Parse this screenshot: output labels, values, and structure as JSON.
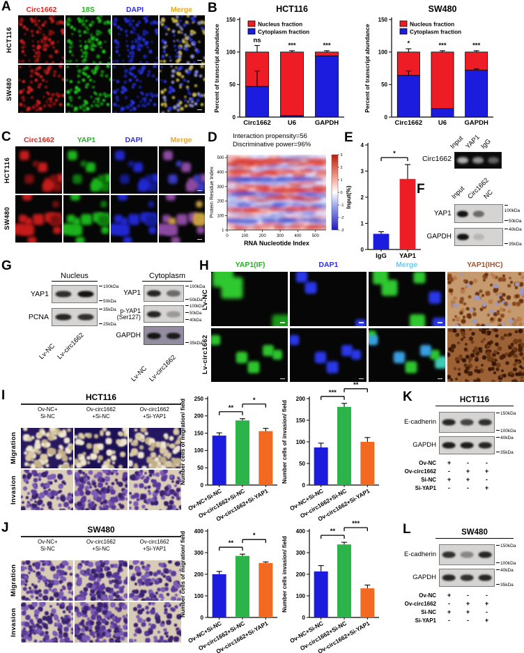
{
  "panelA": {
    "letter": "A",
    "columns": [
      {
        "label": "Circ1662",
        "color": "#e8221c"
      },
      {
        "label": "18S",
        "color": "#22b322"
      },
      {
        "label": "DAPI",
        "color": "#2d2df0"
      },
      {
        "label": "Merge",
        "color": "#e8a820"
      }
    ],
    "rows": [
      "HCT116",
      "SW480"
    ]
  },
  "panelB": {
    "letter": "B"
  },
  "panelC": {
    "letter": "C",
    "columns": [
      {
        "label": "Circ1662",
        "color": "#e8221c"
      },
      {
        "label": "YAP1",
        "color": "#22b322"
      },
      {
        "label": "DAPI",
        "color": "#2d2df0"
      },
      {
        "label": "Merge",
        "color": "#e8a820"
      }
    ],
    "rows": [
      "HCT116",
      "SW480"
    ]
  },
  "panelD": {
    "letter": "D",
    "annotation_line1": "Interaction propensity=56",
    "annotation_line2": "Discriminative power=96%"
  },
  "panelE": {
    "letter": "E",
    "gel": {
      "label": "Circ1662",
      "lanes": [
        "Input",
        "YAP1",
        "IgG"
      ],
      "bands": [
        0.85,
        0.7,
        0.45
      ]
    }
  },
  "panelF": {
    "letter": "F",
    "lanes": [
      "Input",
      "Circ1662",
      "NC"
    ],
    "blots": [
      {
        "label": "YAP1",
        "markers": [
          "100kDa",
          "50kDa"
        ],
        "bands": [
          1,
          0.55,
          0
        ]
      },
      {
        "label": "GAPDH",
        "markers": [
          "40kDa",
          "35kDa"
        ],
        "bands": [
          1,
          0.15,
          0
        ]
      }
    ]
  },
  "panelG": {
    "letter": "G",
    "nucleus": {
      "title": "Nucleus",
      "lanes": [
        "Lv-NC",
        "Lv-circ1662"
      ],
      "blots": [
        {
          "label": "YAP1",
          "markers": [
            "100kDa",
            "50kDa"
          ],
          "bands": [
            0.85,
            1
          ]
        },
        {
          "label": "PCNA",
          "markers": [
            "35kDa",
            "25kDa"
          ],
          "bands": [
            0.9,
            0.85
          ]
        }
      ]
    },
    "cytoplasm": {
      "title": "Cytoplasm",
      "lanes": [
        "Lv-NC",
        "Lv-circ1662"
      ],
      "blots": [
        {
          "label": "YAP1",
          "markers": [
            "100kDa",
            "50kDa"
          ],
          "bands": [
            0.9,
            0.55
          ]
        },
        {
          "label": "p-YAP1\n(Ser127)",
          "markers": [
            "100kDa",
            "50kDa",
            "40kDa"
          ],
          "bands": [
            0.9,
            0.3
          ]
        },
        {
          "label": "GAPDH",
          "markers": [
            "35kDa"
          ],
          "bands": [
            1,
            0.95
          ],
          "dark": true
        }
      ]
    }
  },
  "panelH": {
    "letter": "H",
    "columns": [
      {
        "label": "YAP1(IF)",
        "color": "#22b322"
      },
      {
        "label": "DAP1",
        "color": "#2d2df0"
      },
      {
        "label": "Merge",
        "color": "#66ccee"
      },
      {
        "label": "YAP1(IHC)",
        "color": "#a0522d"
      }
    ],
    "rows": [
      "Lv-NC",
      "Lv-circ1662"
    ]
  },
  "panelI": {
    "letter": "I",
    "title": "HCT116",
    "col_labels": [
      "Ov-NC+\nSi-NC",
      "Ov-circ1662\n+Si-NC",
      "Ov-circ1662\n+Si-YAP1"
    ],
    "row_labels": [
      "Migration",
      "Invasion"
    ]
  },
  "panelJ": {
    "letter": "J",
    "title": "SW480",
    "col_labels": [
      "Ov-NC+\nSi-NC",
      "Ov-circ1662\n+Si-NC",
      "Ov-circ1662\n+Si-YAP1"
    ],
    "row_labels": [
      "Migration",
      "Invasion"
    ]
  },
  "panelK": {
    "letter": "K",
    "title": "HCT116",
    "blots": [
      {
        "label": "E-cadherin",
        "markers": [
          "150kDa",
          "100kDa"
        ],
        "bands": [
          0.9,
          0.75,
          0.85
        ]
      },
      {
        "label": "GAPDH",
        "markers": [
          "40kDa",
          "35kDa"
        ],
        "bands": [
          0.95,
          0.95,
          0.9
        ]
      }
    ],
    "conditions": [
      {
        "label": "Ov-NC",
        "values": [
          "+",
          "-",
          "-"
        ]
      },
      {
        "label": "Ov-circ1662",
        "values": [
          "-",
          "+",
          "+"
        ]
      },
      {
        "label": "Si-NC",
        "values": [
          "+",
          "+",
          "-"
        ]
      },
      {
        "label": "Si-YAP1",
        "values": [
          "-",
          "-",
          "+"
        ]
      }
    ]
  },
  "panelL": {
    "letter": "L",
    "title": "SW480",
    "blots": [
      {
        "label": "E-cadherin",
        "markers": [
          "150kDa",
          "100kDa"
        ],
        "bands": [
          0.85,
          0.4,
          0.9
        ]
      },
      {
        "label": "GAPDH",
        "markers": [
          "40kDa",
          "35kDa"
        ],
        "bands": [
          0.9,
          0.85,
          0.9
        ]
      }
    ],
    "conditions": [
      {
        "label": "Ov-NC",
        "values": [
          "+",
          "-",
          "-"
        ]
      },
      {
        "label": "Ov-circ1662",
        "values": [
          "-",
          "+",
          "+"
        ]
      },
      {
        "label": "Si-NC",
        "values": [
          "+",
          "+",
          "-"
        ]
      },
      {
        "label": "Si-YAP1",
        "values": [
          "-",
          "-",
          "+"
        ]
      }
    ]
  },
  "chart_data": [
    {
      "id": "b_hct116",
      "type": "stacked_bar",
      "title": "HCT116",
      "ylabel": "Percent of transcript abundance",
      "ylim": [
        0,
        150
      ],
      "yticks": [
        0,
        50,
        100,
        150
      ],
      "categories": [
        "Circ1662",
        "U6",
        "GAPDH"
      ],
      "series": [
        {
          "name": "Nucleus fraction",
          "color": "#ee1c24",
          "values": [
            53,
            98,
            6
          ]
        },
        {
          "name": "Cytoplasm fraction",
          "color": "#1c1cdf",
          "values": [
            47,
            2,
            94
          ]
        }
      ],
      "total_err": [
        10,
        2,
        2
      ],
      "cyto_err": [
        24,
        0,
        0
      ],
      "sig": [
        "ns",
        "***",
        "***"
      ],
      "legend_position": "top-left"
    },
    {
      "id": "b_sw480",
      "type": "stacked_bar",
      "title": "SW480",
      "ylabel": "Percent of transcript abundance",
      "ylim": [
        0,
        150
      ],
      "yticks": [
        0,
        50,
        100,
        150
      ],
      "categories": [
        "Circ1662",
        "U6",
        "GAPDH"
      ],
      "series": [
        {
          "name": "Nucleus fraction",
          "color": "#ee1c24",
          "values": [
            36,
            87,
            28
          ]
        },
        {
          "name": "Cytoplasm fraction",
          "color": "#1c1cdf",
          "values": [
            64,
            13,
            72
          ]
        }
      ],
      "total_err": [
        5,
        2,
        2
      ],
      "cyto_err": [
        7,
        0,
        2
      ],
      "sig": [
        "*",
        "***",
        "***"
      ],
      "legend_position": "top-left"
    },
    {
      "id": "e_rip",
      "type": "bar",
      "ylabel": "Input(%)",
      "ylim": [
        0,
        4
      ],
      "yticks": [
        0,
        1,
        2,
        3,
        4
      ],
      "categories": [
        "IgG",
        "YAP1"
      ],
      "values": [
        0.6,
        2.7
      ],
      "errors": [
        0.08,
        0.55
      ],
      "colors": [
        "#1c1cdf",
        "#ee1c24"
      ],
      "sig": [
        {
          "from": 0,
          "to": 1,
          "label": "*"
        }
      ]
    },
    {
      "id": "i_migration",
      "type": "bar",
      "ylabel": "Number cells of migration/ field",
      "ylim": [
        0,
        250
      ],
      "yticks": [
        0,
        50,
        100,
        150,
        200,
        250
      ],
      "categories": [
        "Ov-NC+Si-NC",
        "Ov-circ1662+Si-NC",
        "Ov-circ1662+Si-YAP1"
      ],
      "values": [
        143,
        187,
        156
      ],
      "errors": [
        8,
        5,
        8
      ],
      "colors": [
        "#1c1cdf",
        "#2cb44a",
        "#f26a21"
      ],
      "rotate_labels": true,
      "sig": [
        {
          "from": 0,
          "to": 1,
          "label": "**"
        },
        {
          "from": 1,
          "to": 2,
          "label": "*"
        }
      ]
    },
    {
      "id": "i_invasion",
      "type": "bar",
      "ylabel": "Number cells of invasion/ field",
      "ylim": [
        0,
        200
      ],
      "yticks": [
        0,
        50,
        100,
        150,
        200
      ],
      "categories": [
        "Ov-NC+Si-NC",
        "Ov-circ1662+Si-NC",
        "Ov-circ1662+Si-YAP1"
      ],
      "values": [
        87,
        181,
        100
      ],
      "errors": [
        10,
        8,
        10
      ],
      "colors": [
        "#1c1cdf",
        "#2cb44a",
        "#f26a21"
      ],
      "rotate_labels": true,
      "sig": [
        {
          "from": 0,
          "to": 1,
          "label": "***"
        },
        {
          "from": 1,
          "to": 2,
          "label": "**"
        }
      ]
    },
    {
      "id": "j_migration",
      "type": "bar",
      "ylabel": "Number cells of migration/ field",
      "ylim": [
        0,
        400
      ],
      "yticks": [
        0,
        100,
        200,
        300,
        400
      ],
      "categories": [
        "Ov-NC+Si-NC",
        "Ov-circ1662+Si-NC",
        "Ov-circ1662+Si-YAP1"
      ],
      "values": [
        200,
        285,
        252
      ],
      "errors": [
        13,
        8,
        5
      ],
      "colors": [
        "#1c1cdf",
        "#2cb44a",
        "#f26a21"
      ],
      "rotate_labels": true,
      "sig": [
        {
          "from": 0,
          "to": 1,
          "label": "**"
        },
        {
          "from": 1,
          "to": 2,
          "label": "*"
        }
      ]
    },
    {
      "id": "j_invasion",
      "type": "bar",
      "ylabel": "Number cells invasion/ field",
      "ylim": [
        0,
        400
      ],
      "yticks": [
        0,
        100,
        200,
        300,
        400
      ],
      "categories": [
        "Ov-NC+Si-NC",
        "Ov-circ1662+Si-NC",
        "Ov-circ1662+Si-YAP1"
      ],
      "values": [
        213,
        338,
        135
      ],
      "errors": [
        27,
        10,
        15
      ],
      "colors": [
        "#1c1cdf",
        "#2cb44a",
        "#f26a21"
      ],
      "rotate_labels": true,
      "sig": [
        {
          "from": 0,
          "to": 1,
          "label": "**"
        },
        {
          "from": 1,
          "to": 2,
          "label": "***"
        }
      ]
    },
    {
      "id": "d_heatmap",
      "type": "heatmap",
      "xlabel": "RNA Nucleotide Index",
      "ylabel": "Protein Residue Index",
      "xticks": [
        0,
        100,
        200,
        300,
        400,
        500
      ],
      "yticks": [
        1,
        100,
        200,
        300,
        400,
        500
      ],
      "xlim": [
        0,
        560
      ],
      "ylim": [
        1,
        520
      ],
      "colorbar_ticks": [
        3,
        2,
        1,
        0,
        -1,
        -2,
        -3
      ],
      "colorbar_range": [
        -3,
        3
      ],
      "grid": false,
      "legend_position": "right"
    }
  ]
}
